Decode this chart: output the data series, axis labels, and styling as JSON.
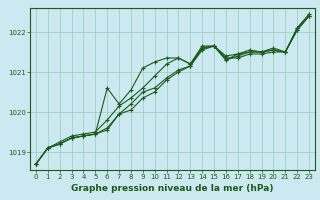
{
  "bg_color": "#cce8f0",
  "grid_color": "#99ccbb",
  "line_color": "#1a5c1a",
  "marker": "+",
  "markersize": 3,
  "linewidth": 0.8,
  "title": "Graphe pression niveau de la mer (hPa)",
  "title_fontsize": 6.5,
  "title_color": "#1a5c1a",
  "ylim": [
    1018.55,
    1022.6
  ],
  "xlim": [
    -0.5,
    23.5
  ],
  "yticks": [
    1019,
    1020,
    1021,
    1022
  ],
  "xticks": [
    0,
    1,
    2,
    3,
    4,
    5,
    6,
    7,
    8,
    9,
    10,
    11,
    12,
    13,
    14,
    15,
    16,
    17,
    18,
    19,
    20,
    21,
    22,
    23
  ],
  "tick_fontsize": 5.0,
  "tick_color": "#1a5c1a",
  "hours": [
    0,
    1,
    2,
    3,
    4,
    5,
    6,
    7,
    8,
    9,
    10,
    11,
    12,
    13,
    14,
    15,
    16,
    17,
    18,
    19,
    20,
    21,
    22,
    23
  ],
  "line1": [
    1018.7,
    1019.1,
    1019.2,
    1019.35,
    1019.4,
    1019.45,
    1019.55,
    1019.95,
    1020.05,
    1020.35,
    1020.5,
    1020.8,
    1021.0,
    1021.15,
    1021.55,
    1021.65,
    1021.35,
    1021.35,
    1021.45,
    1021.45,
    1021.5,
    1021.5,
    1022.1,
    1022.4
  ],
  "line2": [
    1018.7,
    1019.1,
    1019.25,
    1019.4,
    1019.45,
    1019.5,
    1019.8,
    1020.15,
    1020.35,
    1020.6,
    1020.9,
    1021.2,
    1021.35,
    1021.2,
    1021.6,
    1021.65,
    1021.3,
    1021.45,
    1021.55,
    1021.5,
    1021.6,
    1021.5,
    1022.05,
    1022.4
  ],
  "line3": [
    1018.7,
    1019.1,
    1019.2,
    1019.35,
    1019.4,
    1019.45,
    1020.6,
    1020.2,
    1020.55,
    1021.1,
    1021.25,
    1021.35,
    1021.35,
    1021.2,
    1021.65,
    1021.65,
    1021.4,
    1021.45,
    1021.5,
    1021.5,
    1021.55,
    1021.5,
    1022.1,
    1022.45
  ],
  "line4": [
    1018.7,
    1019.1,
    1019.2,
    1019.35,
    1019.4,
    1019.45,
    1019.6,
    1019.95,
    1020.2,
    1020.5,
    1020.6,
    1020.85,
    1021.05,
    1021.15,
    1021.6,
    1021.65,
    1021.3,
    1021.4,
    1021.5,
    1021.5,
    1021.55,
    1021.5,
    1022.05,
    1022.4
  ]
}
